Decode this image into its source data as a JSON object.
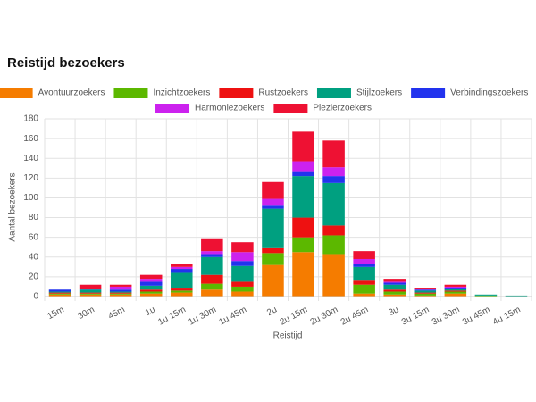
{
  "chart_data": {
    "type": "bar",
    "stacked": true,
    "title": "Reistijd bezoekers",
    "x_label": "Reistijd",
    "y_label": "Aantal bezoekers",
    "categories": [
      "15m",
      "30m",
      "45m",
      "1u",
      "1u 15m",
      "1u 30m",
      "1u 45m",
      "2u",
      "2u 15m",
      "2u 30m",
      "2u 45m",
      "3u",
      "3u 15m",
      "3u 30m",
      "3u 45m",
      "4u 15m"
    ],
    "series": [
      {
        "name": "Avontuurzoekers",
        "color": "#f57c00",
        "values": [
          2,
          2,
          2,
          3,
          4,
          7,
          5,
          32,
          45,
          43,
          3,
          2,
          1,
          3,
          0,
          0
        ]
      },
      {
        "name": "Inzichtzoekers",
        "color": "#5cb800",
        "values": [
          1,
          1,
          1,
          2,
          2,
          6,
          5,
          12,
          15,
          19,
          9,
          3,
          2,
          2,
          1,
          0
        ]
      },
      {
        "name": "Rustzoekers",
        "color": "#ee1111",
        "values": [
          1,
          1,
          1,
          2,
          3,
          9,
          5,
          5,
          20,
          10,
          5,
          2,
          1,
          1,
          0,
          0
        ]
      },
      {
        "name": "Stijlzoekers",
        "color": "#00a080",
        "values": [
          1,
          3,
          1,
          4,
          15,
          18,
          16,
          40,
          42,
          43,
          13,
          5,
          2,
          2,
          1,
          1
        ]
      },
      {
        "name": "Verbindingszoekers",
        "color": "#2233ee",
        "values": [
          2,
          1,
          2,
          4,
          4,
          3,
          5,
          3,
          5,
          7,
          3,
          2,
          1,
          1,
          0,
          0
        ]
      },
      {
        "name": "Harmoniezoekers",
        "color": "#cc22ee",
        "values": [
          0,
          0,
          3,
          3,
          2,
          3,
          9,
          7,
          10,
          9,
          5,
          1,
          1,
          1,
          0,
          0
        ]
      },
      {
        "name": "Plezierzoekers",
        "color": "#ee1133",
        "values": [
          0,
          4,
          2,
          4,
          3,
          13,
          10,
          17,
          30,
          27,
          8,
          3,
          1,
          2,
          0,
          0
        ]
      }
    ],
    "ylim": [
      0,
      180
    ],
    "yticks": [
      0,
      20,
      40,
      60,
      80,
      100,
      120,
      140,
      160,
      180
    ],
    "grid": true,
    "legend": "top"
  }
}
